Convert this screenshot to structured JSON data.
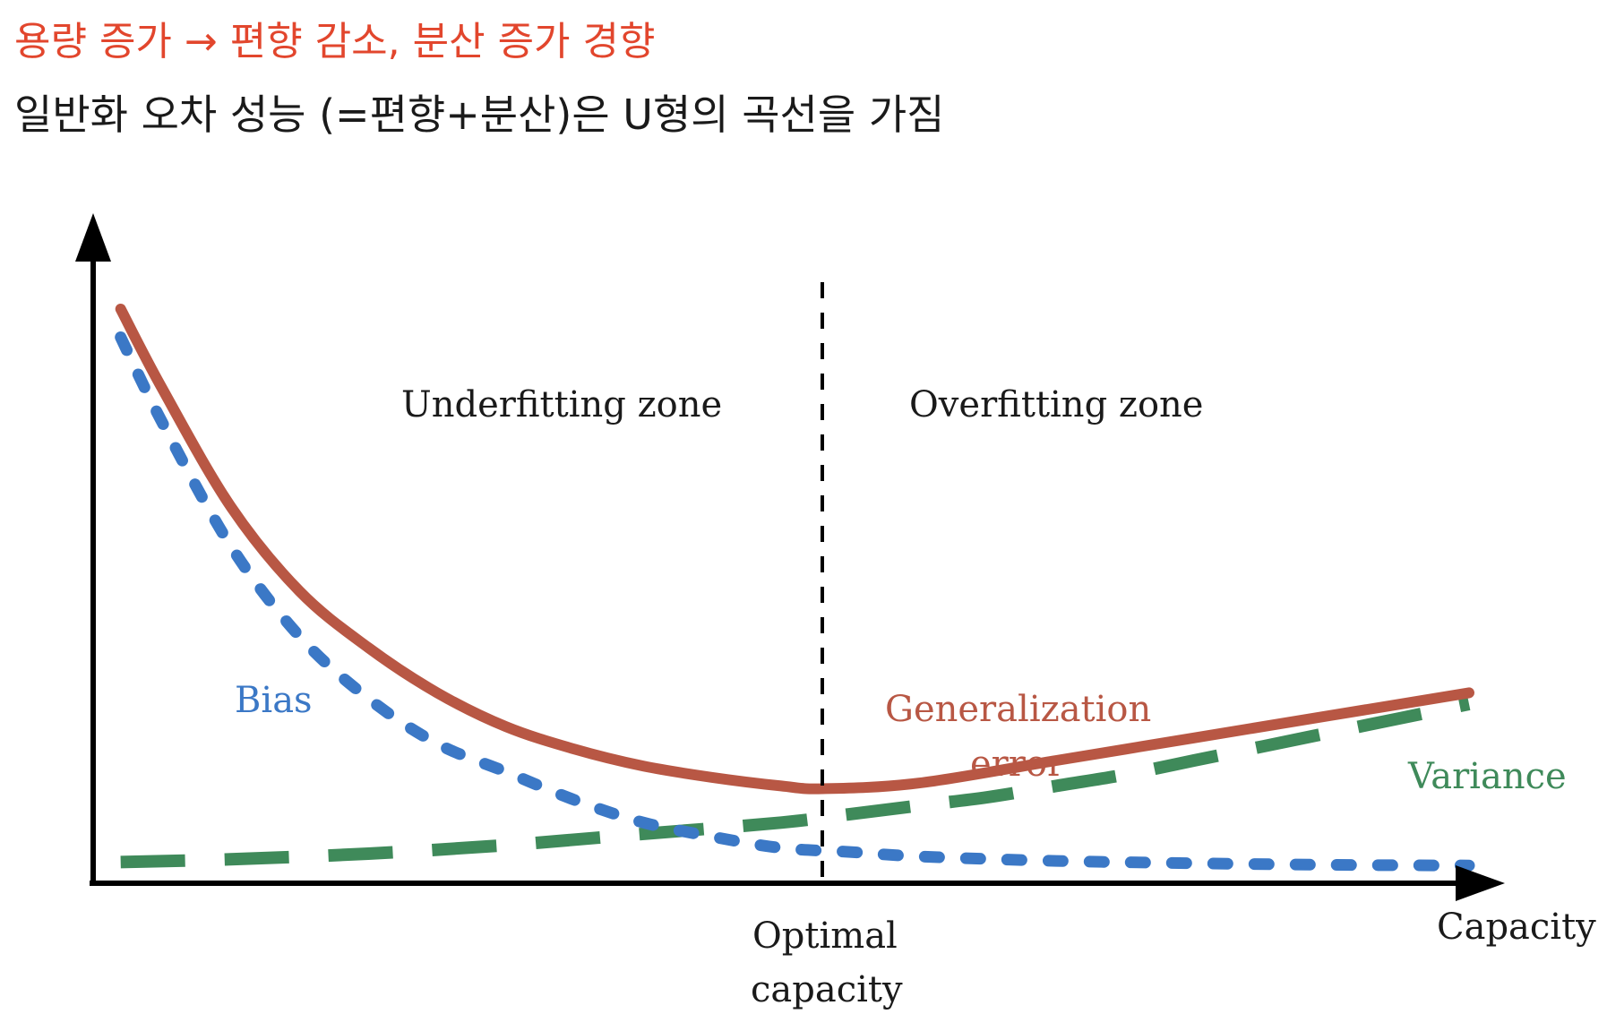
{
  "headings": {
    "line1": "용량 증가 → 편향 감소, 분산 증가 경향",
    "line2": "일반화 오차 성능 (=편향+분산)은 U형의 곡선을 가짐"
  },
  "colors": {
    "accent_red": "#e2462d",
    "bias": "#3b78c6",
    "variance": "#3f8a5a",
    "generalization": "#b85744",
    "axis": "#000000",
    "text": "#1a1a1a"
  },
  "chart_data": {
    "type": "line",
    "title": "",
    "xlabel": "Capacity",
    "ylabel": "",
    "xlim": [
      0,
      10
    ],
    "ylim": [
      0,
      10
    ],
    "grid": false,
    "zones": {
      "left": "Underfitting zone",
      "right": "Overfitting zone"
    },
    "optimal_capacity": {
      "x": 5.3,
      "label_line1": "Optimal",
      "label_line2": "capacity"
    },
    "series": [
      {
        "name": "Bias",
        "style": "dotted",
        "x": [
          0.2,
          0.5,
          1.0,
          1.5,
          2.0,
          2.5,
          3.0,
          3.5,
          4.0,
          4.5,
          5.0,
          5.5,
          6.0,
          7.0,
          8.0,
          9.0,
          10.0
        ],
        "values": [
          9.5,
          8.0,
          5.8,
          4.2,
          3.1,
          2.3,
          1.8,
          1.3,
          0.9,
          0.65,
          0.45,
          0.38,
          0.3,
          0.22,
          0.18,
          0.15,
          0.14
        ]
      },
      {
        "name": "Variance",
        "style": "dashed",
        "x": [
          0.2,
          1.0,
          2.0,
          3.0,
          4.0,
          5.0,
          5.5,
          6.0,
          6.5,
          7.0,
          7.5,
          8.0,
          8.5,
          9.0,
          9.5,
          10.0
        ],
        "values": [
          0.2,
          0.25,
          0.35,
          0.5,
          0.7,
          0.9,
          1.05,
          1.2,
          1.35,
          1.55,
          1.75,
          2.0,
          2.25,
          2.5,
          2.75,
          3.0
        ]
      },
      {
        "name": "Generalization error",
        "label_line1": "Generalization",
        "label_line2": "error",
        "style": "solid",
        "x": [
          0.2,
          0.5,
          1.0,
          1.5,
          2.0,
          2.5,
          3.0,
          3.5,
          4.0,
          4.5,
          5.0,
          5.3,
          6.0,
          7.0,
          8.0,
          9.0,
          10.0
        ],
        "values": [
          10.0,
          8.6,
          6.5,
          5.0,
          4.0,
          3.2,
          2.6,
          2.2,
          1.9,
          1.7,
          1.55,
          1.5,
          1.6,
          2.0,
          2.4,
          2.8,
          3.2
        ]
      }
    ]
  }
}
